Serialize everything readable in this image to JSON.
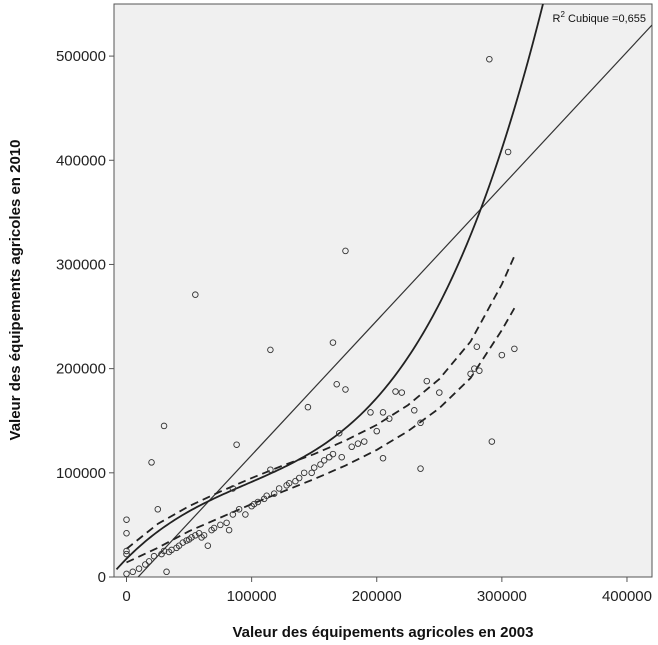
{
  "chart_data": {
    "type": "scatter",
    "xlabel": "Valeur des équipements agricoles en 2003",
    "ylabel": "Valeur des équipements agricoles en 2010",
    "annotation": {
      "prefix": "R",
      "superscript": "2",
      "text": " Cubique =0,655"
    },
    "xlim": [
      -10000,
      420000
    ],
    "ylim": [
      0,
      550000
    ],
    "x_ticks": [
      0,
      100000,
      200000,
      300000,
      400000
    ],
    "x_tick_labels": [
      "0",
      "100000",
      "200000",
      "300000",
      "400000"
    ],
    "y_ticks": [
      0,
      100000,
      200000,
      300000,
      400000,
      500000
    ],
    "y_tick_labels": [
      "0",
      "100000",
      "200000",
      "300000",
      "400000",
      "500000"
    ],
    "grid": false,
    "background_color": "#f0f0f0",
    "points": [
      [
        0,
        55000
      ],
      [
        0,
        42000
      ],
      [
        0,
        25000
      ],
      [
        0,
        22000
      ],
      [
        0,
        3000
      ],
      [
        5000,
        5000
      ],
      [
        10000,
        8000
      ],
      [
        15000,
        12000
      ],
      [
        18000,
        15000
      ],
      [
        20000,
        110000
      ],
      [
        22000,
        20000
      ],
      [
        25000,
        65000
      ],
      [
        28000,
        22000
      ],
      [
        30000,
        145000
      ],
      [
        30000,
        25000
      ],
      [
        32000,
        5000
      ],
      [
        34000,
        24000
      ],
      [
        36000,
        26000
      ],
      [
        40000,
        28000
      ],
      [
        42000,
        30000
      ],
      [
        45000,
        33000
      ],
      [
        48000,
        35000
      ],
      [
        50000,
        36000
      ],
      [
        52000,
        38000
      ],
      [
        55000,
        271000
      ],
      [
        55000,
        40000
      ],
      [
        58000,
        42000
      ],
      [
        60000,
        38000
      ],
      [
        62000,
        40000
      ],
      [
        65000,
        30000
      ],
      [
        68000,
        45000
      ],
      [
        70000,
        47000
      ],
      [
        75000,
        50000
      ],
      [
        80000,
        52000
      ],
      [
        82000,
        45000
      ],
      [
        85000,
        85000
      ],
      [
        85000,
        60000
      ],
      [
        88000,
        127000
      ],
      [
        90000,
        65000
      ],
      [
        95000,
        60000
      ],
      [
        100000,
        68000
      ],
      [
        102000,
        70000
      ],
      [
        105000,
        72000
      ],
      [
        110000,
        75000
      ],
      [
        112000,
        78000
      ],
      [
        115000,
        218000
      ],
      [
        115000,
        103000
      ],
      [
        118000,
        80000
      ],
      [
        122000,
        85000
      ],
      [
        128000,
        88000
      ],
      [
        130000,
        90000
      ],
      [
        135000,
        92000
      ],
      [
        138000,
        95000
      ],
      [
        142000,
        100000
      ],
      [
        145000,
        163000
      ],
      [
        148000,
        100000
      ],
      [
        150000,
        105000
      ],
      [
        155000,
        108000
      ],
      [
        158000,
        112000
      ],
      [
        162000,
        115000
      ],
      [
        165000,
        225000
      ],
      [
        165000,
        118000
      ],
      [
        168000,
        185000
      ],
      [
        170000,
        138000
      ],
      [
        172000,
        115000
      ],
      [
        175000,
        313000
      ],
      [
        175000,
        180000
      ],
      [
        180000,
        125000
      ],
      [
        185000,
        128000
      ],
      [
        190000,
        130000
      ],
      [
        195000,
        158000
      ],
      [
        200000,
        140000
      ],
      [
        205000,
        158000
      ],
      [
        205000,
        114000
      ],
      [
        210000,
        152000
      ],
      [
        215000,
        178000
      ],
      [
        220000,
        177000
      ],
      [
        230000,
        160000
      ],
      [
        235000,
        148000
      ],
      [
        235000,
        104000
      ],
      [
        240000,
        188000
      ],
      [
        250000,
        177000
      ],
      [
        275000,
        195000
      ],
      [
        278000,
        200000
      ],
      [
        280000,
        221000
      ],
      [
        282000,
        198000
      ],
      [
        290000,
        497000
      ],
      [
        292000,
        130000
      ],
      [
        300000,
        213000
      ],
      [
        305000,
        408000
      ],
      [
        310000,
        219000
      ]
    ],
    "linear_fit": {
      "intercept": -12000,
      "slope": 1.29
    },
    "cubic_fit": {
      "c0": 17500,
      "c1": 1.21,
      "c2": -7.25e-06,
      "c3": 2.53e-11
    },
    "cubic_fit_range": [
      -8000,
      420000
    ],
    "confidence_band": {
      "x": [
        0,
        25000,
        50000,
        75000,
        100000,
        125000,
        150000,
        175000,
        200000,
        225000,
        250000,
        275000,
        300000,
        310000
      ],
      "upper": [
        27000,
        51000,
        68000,
        82000,
        95000,
        107000,
        118000,
        131000,
        146000,
        165000,
        190000,
        226000,
        281000,
        308000
      ],
      "lower": [
        14000,
        28000,
        44000,
        57000,
        70000,
        82000,
        94000,
        107000,
        122000,
        140000,
        162000,
        191000,
        237000,
        258000
      ],
      "style": "dashed"
    }
  }
}
